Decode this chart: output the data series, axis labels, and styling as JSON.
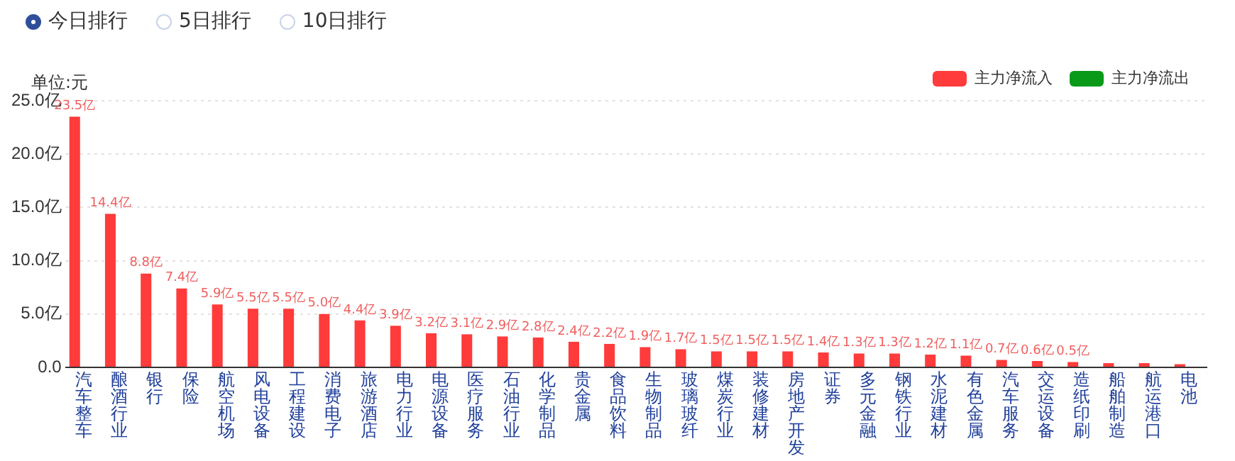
{
  "chart_data": {
    "type": "bar",
    "ylabel": "单位:元",
    "annotations": [
      "今日排行",
      "5日排行",
      "10日排行"
    ],
    "categories": [
      "汽车整车",
      "酿酒行业",
      "银行",
      "保险",
      "航空机场",
      "风电设备",
      "工程建设",
      "消费电子",
      "旅游酒店",
      "电力行业",
      "电源设备",
      "医疗服务",
      "石油行业",
      "化学制品",
      "贵金属",
      "食品饮料",
      "生物制品",
      "玻璃玻纤",
      "煤炭行业",
      "装修建材",
      "房地产开发",
      "证券",
      "多元金融",
      "钢铁行业",
      "水泥建材",
      "有色金属",
      "汽车服务",
      "交运设备",
      "造纸印刷",
      "船舶制造",
      "航运港口",
      "电池"
    ],
    "series": [
      {
        "name": "主力净流入",
        "color": "#ff3b3b",
        "values": [
          23.5,
          14.4,
          8.8,
          7.4,
          5.9,
          5.5,
          5.5,
          5.0,
          4.4,
          3.9,
          3.2,
          3.1,
          2.9,
          2.8,
          2.4,
          2.2,
          1.9,
          1.7,
          1.5,
          1.5,
          1.5,
          1.4,
          1.3,
          1.3,
          1.2,
          1.1,
          0.7,
          0.6,
          0.5,
          0.4,
          0.4,
          0.3
        ],
        "value_labels": [
          "23.5亿",
          "14.4亿",
          "8.8亿",
          "7.4亿",
          "5.9亿",
          "5.5亿",
          "5.5亿",
          "5.0亿",
          "4.4亿",
          "3.9亿",
          "3.2亿",
          "3.1亿",
          "2.9亿",
          "2.8亿",
          "2.4亿",
          "2.2亿",
          "1.9亿",
          "1.7亿",
          "1.5亿",
          "1.5亿",
          "1.5亿",
          "1.4亿",
          "1.3亿",
          "1.3亿",
          "1.2亿",
          "1.1亿",
          "0.7亿",
          "0.6亿",
          "0.5亿",
          null,
          null,
          null
        ]
      },
      {
        "name": "主力净流出",
        "color": "#0a9a1a",
        "values": [
          null,
          null,
          null,
          null,
          null,
          null,
          null,
          null,
          null,
          null,
          null,
          null,
          null,
          null,
          null,
          null,
          null,
          null,
          null,
          null,
          null,
          null,
          null,
          null,
          null,
          null,
          null,
          null,
          null,
          null,
          null,
          null
        ]
      }
    ],
    "ylim": [
      0,
      25
    ],
    "yticks": [
      {
        "value": 0,
        "label": "0.0"
      },
      {
        "value": 5,
        "label": "5.0亿"
      },
      {
        "value": 10,
        "label": "10.0亿"
      },
      {
        "value": 15,
        "label": "15.0亿"
      },
      {
        "value": 20,
        "label": "20.0亿"
      },
      {
        "value": 25,
        "label": "25.0亿"
      }
    ],
    "grid": "y",
    "legend": "top right"
  }
}
